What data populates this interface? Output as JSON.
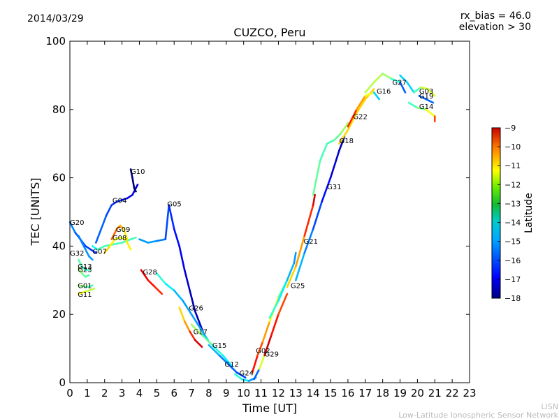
{
  "header": {
    "date": "2014/03/29",
    "params": [
      "rx_bias = 46.0",
      "elevation > 30"
    ]
  },
  "footer": {
    "line1": "LISN",
    "line2": "Low-Latitude Ionospheric Sensor Network"
  },
  "colors": {
    "background": "#ffffff",
    "axis": "#000000",
    "footer_text": "#bbbbbb",
    "colormap": [
      "#00007f",
      "#0000ff",
      "#007fff",
      "#00cccc",
      "#00aa3c",
      "#22cc22",
      "#7fff00",
      "#ffff00",
      "#ff7f00",
      "#ff0000",
      "#7f0000"
    ]
  },
  "chart_data": {
    "type": "scatter",
    "title": "CUZCO, Peru",
    "xlabel": "Time [UT]",
    "ylabel": "TEC [UNITS]",
    "xlim": [
      0,
      23
    ],
    "ylim": [
      0,
      100
    ],
    "xticks": [
      0,
      1,
      2,
      3,
      4,
      5,
      6,
      7,
      8,
      9,
      10,
      11,
      12,
      13,
      14,
      15,
      16,
      17,
      18,
      19,
      20,
      21,
      22,
      23
    ],
    "yticks": [
      0,
      20,
      40,
      60,
      80,
      100
    ],
    "grid": false,
    "colorbar": {
      "label": "Latitude",
      "range": [
        -18,
        -9
      ],
      "ticks": [
        -9,
        -10,
        -11,
        -12,
        -13,
        -14,
        -15,
        -16,
        -17,
        -18
      ],
      "tick_labels": [
        "−9",
        "−10",
        "−11",
        "−12",
        "−13",
        "−14",
        "−15",
        "−16",
        "−17",
        "−18"
      ]
    },
    "series": [
      {
        "name": "G20",
        "label_at": [
          0.0,
          47.0
        ],
        "points": [
          [
            0.0,
            47,
            -15.5
          ],
          [
            0.3,
            44,
            -16
          ],
          [
            0.6,
            42,
            -16.2
          ],
          [
            0.9,
            40,
            -16.3
          ],
          [
            1.2,
            39,
            -16.4
          ],
          [
            1.5,
            38,
            -16.5
          ]
        ]
      },
      {
        "name": "G32",
        "label_at": [
          0.0,
          38.0
        ],
        "points": [
          [
            0.5,
            43,
            -15.8
          ],
          [
            0.7,
            41,
            -15.8
          ],
          [
            0.9,
            39,
            -15.6
          ],
          [
            1.1,
            37,
            -15.5
          ],
          [
            1.3,
            36,
            -15.5
          ]
        ]
      },
      {
        "name": "G13",
        "label_at": [
          0.45,
          34.2
        ],
        "points": [
          [
            0.5,
            36,
            -13.8
          ],
          [
            0.7,
            34,
            -14
          ],
          [
            0.9,
            33,
            -14.2
          ],
          [
            1.1,
            33,
            -14.2
          ]
        ]
      },
      {
        "name": "G23",
        "label_at": [
          0.45,
          33.2
        ],
        "points": [
          [
            0.5,
            33.5,
            -13
          ],
          [
            0.7,
            32,
            -13.5
          ],
          [
            0.9,
            31,
            -13.8
          ],
          [
            1.1,
            31.5,
            -14
          ]
        ]
      },
      {
        "name": "G01",
        "label_at": [
          0.45,
          28.5
        ],
        "points": [
          [
            0.5,
            28.5,
            -13
          ],
          [
            0.8,
            28.2,
            -13.5
          ],
          [
            1.0,
            28,
            -14
          ],
          [
            1.3,
            28.5,
            -14
          ]
        ]
      },
      {
        "name": "G11",
        "label_at": [
          0.45,
          26.0
        ],
        "points": [
          [
            0.5,
            26,
            -12
          ],
          [
            0.8,
            26.5,
            -12.5
          ],
          [
            1.1,
            27,
            -13
          ],
          [
            1.4,
            27.5,
            -13
          ]
        ]
      },
      {
        "name": "G07",
        "label_at": [
          1.3,
          38.5
        ],
        "points": [
          [
            1.3,
            40,
            -15
          ],
          [
            1.6,
            39,
            -14
          ],
          [
            2.0,
            40,
            -14
          ],
          [
            2.5,
            40.5,
            -14
          ],
          [
            3.0,
            41,
            -14
          ],
          [
            3.5,
            42,
            -14
          ],
          [
            3.8,
            42.5,
            -14
          ]
        ]
      },
      {
        "name": "G04",
        "label_at": [
          2.45,
          53.5
        ],
        "points": [
          [
            1.5,
            41,
            -16
          ],
          [
            1.8,
            45,
            -16
          ],
          [
            2.1,
            49,
            -16
          ],
          [
            2.4,
            52,
            -16.5
          ],
          [
            2.7,
            53,
            -16.5
          ],
          [
            3.0,
            53.5,
            -16.5
          ],
          [
            3.3,
            54,
            -17
          ],
          [
            3.6,
            55,
            -17
          ],
          [
            3.9,
            58,
            -17.5
          ]
        ]
      },
      {
        "name": "G10",
        "label_at": [
          3.5,
          62.0
        ],
        "points": [
          [
            3.5,
            62.5,
            -18
          ],
          [
            3.6,
            60,
            -18
          ],
          [
            3.7,
            57,
            -18
          ],
          [
            3.8,
            56,
            -18
          ]
        ]
      },
      {
        "name": "G09",
        "label_at": [
          2.65,
          45.0
        ],
        "points": [
          [
            2.4,
            42,
            -11
          ],
          [
            2.7,
            45,
            -11
          ],
          [
            2.9,
            46,
            -11.5
          ],
          [
            3.1,
            45,
            -12
          ],
          [
            3.3,
            42,
            -12.5
          ]
        ]
      },
      {
        "name": "G08",
        "label_at": [
          2.45,
          42.5
        ],
        "points": [
          [
            2.0,
            38,
            -12
          ],
          [
            2.3,
            40,
            -12
          ],
          [
            2.6,
            42,
            -12.5
          ],
          [
            2.9,
            42.5,
            -12.5
          ],
          [
            3.2,
            42,
            -12.5
          ],
          [
            3.5,
            39,
            -12
          ]
        ]
      },
      {
        "name": "G28",
        "label_at": [
          4.2,
          32.5
        ],
        "points": [
          [
            4.1,
            33,
            -10
          ],
          [
            4.5,
            30,
            -10
          ],
          [
            4.9,
            28,
            -10.5
          ],
          [
            5.3,
            26,
            -10.5
          ]
        ]
      },
      {
        "name": "G05",
        "label_at": [
          5.6,
          52.5
        ],
        "points": [
          [
            4.0,
            42,
            -15.5
          ],
          [
            4.5,
            41,
            -15.5
          ],
          [
            5.0,
            41.5,
            -15.5
          ],
          [
            5.5,
            42,
            -16
          ],
          [
            5.7,
            52,
            -16.5
          ],
          [
            6.0,
            45,
            -16.5
          ],
          [
            6.3,
            40,
            -17
          ],
          [
            6.6,
            33,
            -17
          ],
          [
            6.9,
            27,
            -17.5
          ],
          [
            7.2,
            21,
            -17.5
          ],
          [
            7.5,
            17,
            -17.5
          ],
          [
            7.8,
            13,
            -17.5
          ]
        ]
      },
      {
        "name": "G26",
        "label_at": [
          6.85,
          22.0
        ],
        "points": [
          [
            5.0,
            32,
            -14
          ],
          [
            5.5,
            29,
            -14.5
          ],
          [
            6.0,
            27,
            -15
          ],
          [
            6.5,
            24,
            -15.5
          ],
          [
            7.0,
            20,
            -15.5
          ],
          [
            7.5,
            16,
            -15.5
          ],
          [
            8.0,
            12,
            -15
          ]
        ]
      },
      {
        "name": "G17",
        "label_at": [
          7.1,
          15.0
        ],
        "points": [
          [
            6.3,
            22,
            -12
          ],
          [
            6.6,
            18,
            -12
          ],
          [
            6.9,
            15,
            -11
          ],
          [
            7.2,
            12.5,
            -10
          ],
          [
            7.6,
            10.5,
            -9.5
          ]
        ]
      },
      {
        "name": "G15",
        "label_at": [
          8.2,
          11.0
        ],
        "points": [
          [
            7.0,
            17,
            -13
          ],
          [
            7.6,
            14,
            -13.5
          ],
          [
            8.2,
            11,
            -14
          ],
          [
            8.8,
            8,
            -14.5
          ],
          [
            9.3,
            5,
            -15
          ]
        ]
      },
      {
        "name": "G12",
        "label_at": [
          8.9,
          5.5
        ],
        "points": [
          [
            8.0,
            11,
            -15
          ],
          [
            8.6,
            8,
            -15.5
          ],
          [
            9.1,
            5.5,
            -16
          ],
          [
            9.6,
            3,
            -16
          ],
          [
            10.1,
            1.5,
            -16.5
          ]
        ]
      },
      {
        "name": "G24",
        "label_at": [
          9.75,
          3.0
        ],
        "points": [
          [
            9.5,
            2.5,
            -14
          ],
          [
            9.9,
            1,
            -14.5
          ],
          [
            10.3,
            0.5,
            -15
          ],
          [
            10.7,
            1.5,
            -16
          ]
        ]
      },
      {
        "name": "G02",
        "label_at": [
          10.7,
          9.5
        ],
        "points": [
          [
            10.5,
            3,
            -10
          ],
          [
            10.8,
            8,
            -10.5
          ],
          [
            11.1,
            12,
            -11
          ],
          [
            11.5,
            18,
            -12
          ],
          [
            12.0,
            25,
            -13
          ],
          [
            12.5,
            30,
            -14
          ]
        ]
      },
      {
        "name": "G29",
        "label_at": [
          11.2,
          8.5
        ],
        "points": [
          [
            10.6,
            1,
            -16
          ],
          [
            10.9,
            4,
            -16
          ],
          [
            11.2,
            8,
            -9.5
          ],
          [
            11.6,
            14,
            -10
          ],
          [
            12.0,
            20,
            -10.5
          ],
          [
            12.5,
            26,
            -11
          ]
        ]
      },
      {
        "name": "G25",
        "label_at": [
          12.7,
          28.5
        ],
        "points": [
          [
            11.5,
            19,
            -14
          ],
          [
            12.0,
            24,
            -14.5
          ],
          [
            12.5,
            30,
            -15
          ],
          [
            12.9,
            35,
            -15.5
          ],
          [
            13.0,
            38,
            -15.5
          ]
        ]
      },
      {
        "name": "G21",
        "label_at": [
          13.45,
          41.5
        ],
        "points": [
          [
            12.5,
            28,
            -12
          ],
          [
            13.0,
            34,
            -12
          ],
          [
            13.5,
            43,
            -11
          ],
          [
            14.0,
            52,
            -10
          ],
          [
            14.1,
            55,
            -9.5
          ]
        ]
      },
      {
        "name": "G31",
        "label_at": [
          14.8,
          57.5
        ],
        "points": [
          [
            13.0,
            30,
            -15
          ],
          [
            13.5,
            38,
            -15.5
          ],
          [
            14.0,
            45,
            -16
          ],
          [
            14.5,
            53,
            -16.5
          ],
          [
            15.0,
            60,
            -17
          ],
          [
            15.5,
            68,
            -17.5
          ],
          [
            15.8,
            72,
            -17.5
          ]
        ]
      },
      {
        "name": "G18",
        "label_at": [
          15.5,
          71.0
        ],
        "points": [
          [
            14.0,
            55,
            -13.5
          ],
          [
            14.4,
            65,
            -14
          ],
          [
            14.8,
            70,
            -14
          ],
          [
            15.2,
            71,
            -14
          ],
          [
            15.6,
            73,
            -13.5
          ],
          [
            16.0,
            76,
            -13
          ]
        ]
      },
      {
        "name": "G22",
        "label_at": [
          16.3,
          78.0
        ],
        "points": [
          [
            15.5,
            70,
            -12
          ],
          [
            16.0,
            74,
            -12
          ],
          [
            16.5,
            79,
            -12
          ],
          [
            17.0,
            83,
            -12
          ],
          [
            17.5,
            86,
            -12
          ]
        ]
      },
      {
        "name": "G16",
        "label_at": [
          17.65,
          85.5
        ],
        "points": [
          [
            16.0,
            75,
            -10
          ],
          [
            16.5,
            80,
            -11
          ],
          [
            17.0,
            84,
            -12
          ],
          [
            17.5,
            85,
            -13
          ],
          [
            17.8,
            83,
            -17
          ]
        ]
      },
      {
        "name": "G27",
        "label_at": [
          18.55,
          88.0
        ],
        "points": [
          [
            17.0,
            85,
            -13
          ],
          [
            17.5,
            88,
            -13
          ],
          [
            18.0,
            90.5,
            -13
          ],
          [
            18.5,
            89,
            -13.5
          ],
          [
            19.0,
            88,
            -15
          ],
          [
            19.3,
            85,
            -17
          ]
        ]
      },
      {
        "name": "G03",
        "label_at": [
          20.1,
          85.5
        ],
        "points": [
          [
            19.0,
            90,
            -15
          ],
          [
            19.4,
            88,
            -15
          ],
          [
            19.8,
            85,
            -15
          ],
          [
            20.2,
            86.5,
            -13
          ],
          [
            20.6,
            86,
            -12.5
          ],
          [
            21.0,
            84,
            -13
          ]
        ]
      },
      {
        "name": "G19",
        "label_at": [
          20.1,
          84.0
        ],
        "points": [
          [
            20.1,
            84,
            -16
          ],
          [
            20.5,
            83,
            -16
          ],
          [
            20.9,
            82,
            -16
          ]
        ]
      },
      {
        "name": "G14",
        "label_at": [
          20.1,
          81.0
        ],
        "points": [
          [
            19.5,
            82,
            -14
          ],
          [
            20.0,
            80.5,
            -14
          ],
          [
            20.5,
            80,
            -13
          ],
          [
            21.0,
            78,
            -12
          ],
          [
            21.0,
            76.5,
            -9.5
          ]
        ]
      }
    ]
  }
}
